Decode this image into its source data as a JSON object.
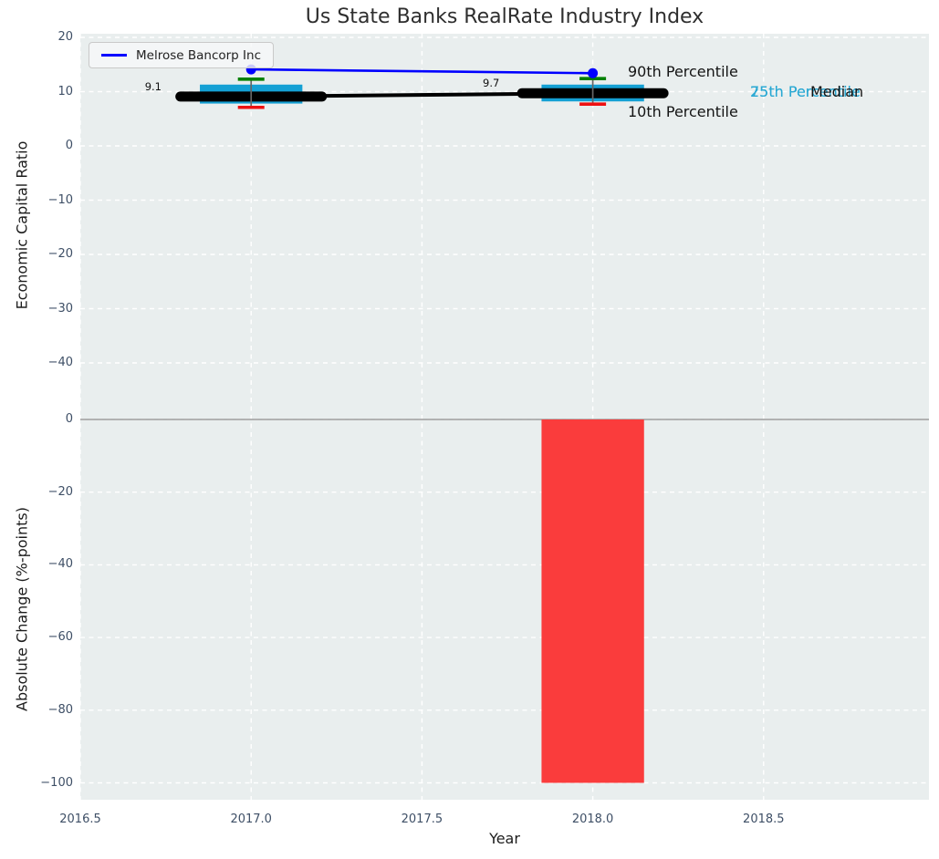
{
  "figure": {
    "background": "#ffffff",
    "axes_background": "#e9eeee",
    "grid_color": "#ffffff",
    "tick_color": "#3e4f66"
  },
  "chart_data": [
    {
      "type": "line+boxplot",
      "title": "Us State Banks RealRate Industry Index",
      "ylabel": "Economic Capital Ratio",
      "ylim": [
        -49.7,
        20.7
      ],
      "yticks": [
        20,
        10,
        0,
        -10,
        -20,
        -30,
        -40
      ],
      "ytick_labels": [
        "20",
        "10",
        "0",
        "−10",
        "−20",
        "−30",
        "−40"
      ],
      "grid": "white-dashed",
      "legend": {
        "position": "upper-left",
        "entries": [
          {
            "label": "Melrose Bancorp Inc",
            "color": "#0000ff"
          }
        ]
      },
      "x": [
        2017,
        2018
      ],
      "series": [
        {
          "name": "Melrose Bancorp Inc",
          "color": "#0000ff",
          "marker": "circle",
          "values": [
            14.1,
            13.4
          ]
        },
        {
          "name": "Industry Median",
          "color": "#000000",
          "marker": "none",
          "values": [
            9.1,
            9.7
          ]
        }
      ],
      "boxplot": {
        "box_color": "#14a0d4",
        "median_color": "#000000",
        "whisker_color": "#666666",
        "p90_cap_color": "#008000",
        "p10_cap_color": "#ee1111",
        "box_width": 0.3,
        "boxes": [
          {
            "x": 2017,
            "p90": 12.3,
            "p75": 11.3,
            "median": 9.1,
            "p25": 7.8,
            "p10": 7.1
          },
          {
            "x": 2018,
            "p90": 12.4,
            "p75": 11.3,
            "median": 9.7,
            "p25": 8.2,
            "p10": 7.7
          }
        ]
      },
      "value_labels": [
        {
          "text": "9.1",
          "x": 2017
        },
        {
          "text": "9.7",
          "x": 2018
        }
      ],
      "annotations": {
        "p90": "90th Percentile",
        "p10": "10th Percentile",
        "p75": "75th Percentile",
        "p25": "25th Percentile",
        "median": "Median",
        "percentile_color": "#29a8d3"
      }
    },
    {
      "type": "bar",
      "xlabel": "Year",
      "ylabel": "Absolute Change (%-points)",
      "xlim": [
        2016.5,
        2018.99
      ],
      "ylim": [
        -104.6,
        1.0
      ],
      "xticks": [
        2016.5,
        2017.0,
        2017.5,
        2018.0,
        2018.5
      ],
      "xtick_labels": [
        "2016.5",
        "2017.0",
        "2017.5",
        "2018.0",
        "2018.5"
      ],
      "yticks": [
        0,
        -20,
        -40,
        -60,
        -80,
        -100
      ],
      "ytick_labels": [
        "0",
        "−20",
        "−40",
        "−60",
        "−80",
        "−100"
      ],
      "bar_color": "#fa3c3c",
      "zero_line_color": "#a8a8a8",
      "bar_width": 0.3,
      "x": [
        2018
      ],
      "values": [
        -100
      ]
    }
  ]
}
